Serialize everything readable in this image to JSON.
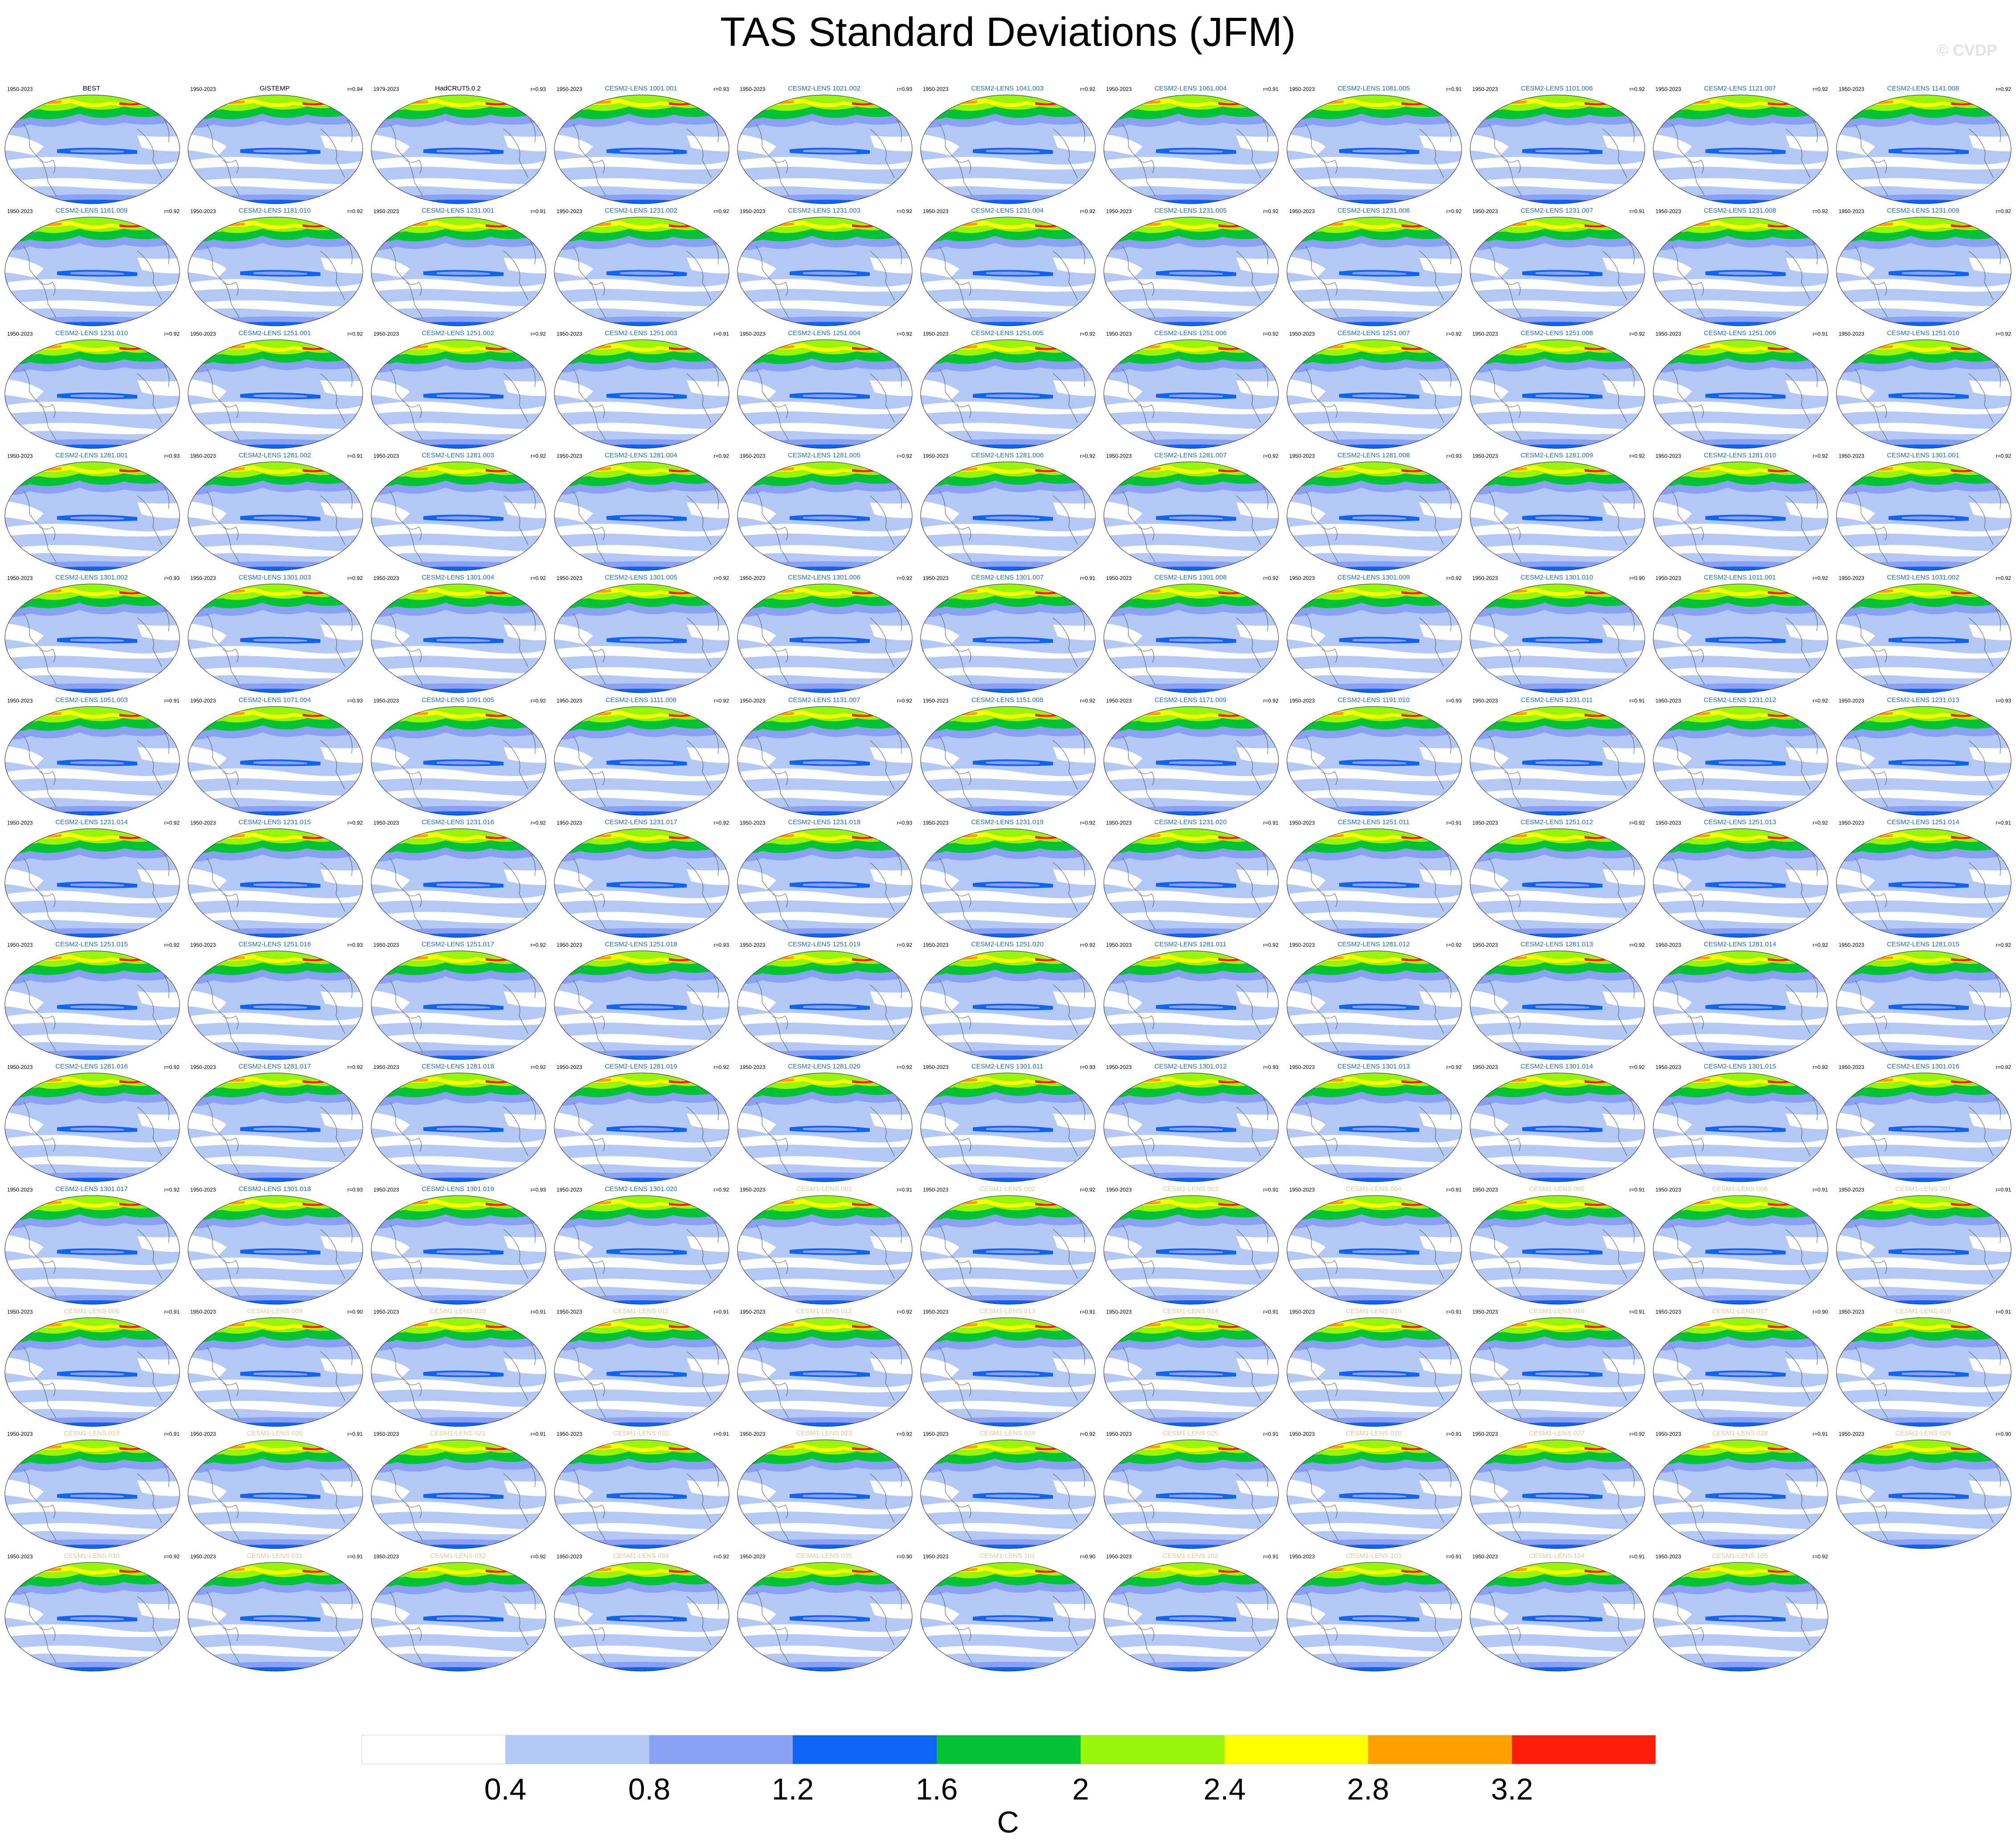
{
  "title": "TAS Standard Deviations (JFM)",
  "watermark": "© CVDP",
  "units": "C",
  "colorbar": {
    "levels": [
      "0.4",
      "0.8",
      "1.2",
      "1.6",
      "2",
      "2.4",
      "2.8",
      "3.2"
    ],
    "colors": [
      "#ffffff",
      "#b4c8f5",
      "#8aa0f5",
      "#0f64f5",
      "#05c337",
      "#96f50a",
      "#ffff00",
      "#ffa000",
      "#ff1e0a"
    ]
  },
  "name_colors": {
    "obs": "#000000",
    "cesm2": "#1e6eb4",
    "cesm1": "#e0c89a"
  },
  "panels": [
    {
      "period": "1950-2023",
      "name": "BEST",
      "corr": "",
      "group": "obs"
    },
    {
      "period": "1950-2023",
      "name": "GISTEMP",
      "corr": "r=0.94",
      "group": "obs"
    },
    {
      "period": "1979-2023",
      "name": "HadCRUT5.0.2",
      "corr": "r=0.93",
      "group": "obs"
    },
    {
      "period": "1950-2023",
      "name": "CESM2-LENS 1001.001",
      "corr": "r=0.93",
      "group": "cesm2"
    },
    {
      "period": "1950-2023",
      "name": "CESM2-LENS 1021.002",
      "corr": "r=0.93",
      "group": "cesm2"
    },
    {
      "period": "1950-2023",
      "name": "CESM2-LENS 1041.003",
      "corr": "r=0.92",
      "group": "cesm2"
    },
    {
      "period": "1950-2023",
      "name": "CESM2-LENS 1061.004",
      "corr": "r=0.91",
      "group": "cesm2"
    },
    {
      "period": "1950-2023",
      "name": "CESM2-LENS 1081.005",
      "corr": "r=0.91",
      "group": "cesm2"
    },
    {
      "period": "1950-2023",
      "name": "CESM2-LENS 1101.006",
      "corr": "r=0.92",
      "group": "cesm2"
    },
    {
      "period": "1950-2023",
      "name": "CESM2-LENS 1121.007",
      "corr": "r=0.92",
      "group": "cesm2"
    },
    {
      "period": "1950-2023",
      "name": "CESM2-LENS 1141.008",
      "corr": "r=0.92",
      "group": "cesm2"
    },
    {
      "period": "1950-2023",
      "name": "CESM2-LENS 1161.009",
      "corr": "r=0.92",
      "group": "cesm2"
    },
    {
      "period": "1950-2023",
      "name": "CESM2-LENS 1181.010",
      "corr": "r=0.92",
      "group": "cesm2"
    },
    {
      "period": "1950-2023",
      "name": "CESM2-LENS 1231.001",
      "corr": "r=0.91",
      "group": "cesm2"
    },
    {
      "period": "1950-2023",
      "name": "CESM2-LENS 1231.002",
      "corr": "r=0.92",
      "group": "cesm2"
    },
    {
      "period": "1950-2023",
      "name": "CESM2-LENS 1231.003",
      "corr": "r=0.92",
      "group": "cesm2"
    },
    {
      "period": "1950-2023",
      "name": "CESM2-LENS 1231.004",
      "corr": "r=0.92",
      "group": "cesm2"
    },
    {
      "period": "1950-2023",
      "name": "CESM2-LENS 1231.005",
      "corr": "r=0.92",
      "group": "cesm2"
    },
    {
      "period": "1950-2023",
      "name": "CESM2-LENS 1231.006",
      "corr": "r=0.92",
      "group": "cesm2"
    },
    {
      "period": "1950-2023",
      "name": "CESM2-LENS 1231.007",
      "corr": "r=0.91",
      "group": "cesm2"
    },
    {
      "period": "1950-2023",
      "name": "CESM2-LENS 1231.008",
      "corr": "r=0.92",
      "group": "cesm2"
    },
    {
      "period": "1950-2023",
      "name": "CESM2-LENS 1231.009",
      "corr": "r=0.92",
      "group": "cesm2"
    },
    {
      "period": "1950-2023",
      "name": "CESM2-LENS 1231.010",
      "corr": "r=0.92",
      "group": "cesm2"
    },
    {
      "period": "1950-2023",
      "name": "CESM2-LENS 1251.001",
      "corr": "r=0.92",
      "group": "cesm2"
    },
    {
      "period": "1950-2023",
      "name": "CESM2-LENS 1251.002",
      "corr": "r=0.92",
      "group": "cesm2"
    },
    {
      "period": "1950-2023",
      "name": "CESM2-LENS 1251.003",
      "corr": "r=0.91",
      "group": "cesm2"
    },
    {
      "period": "1950-2023",
      "name": "CESM2-LENS 1251.004",
      "corr": "r=0.92",
      "group": "cesm2"
    },
    {
      "period": "1950-2023",
      "name": "CESM2-LENS 1251.005",
      "corr": "r=0.92",
      "group": "cesm2"
    },
    {
      "period": "1950-2023",
      "name": "CESM2-LENS 1251.006",
      "corr": "r=0.92",
      "group": "cesm2"
    },
    {
      "period": "1950-2023",
      "name": "CESM2-LENS 1251.007",
      "corr": "r=0.92",
      "group": "cesm2"
    },
    {
      "period": "1950-2023",
      "name": "CESM2-LENS 1251.008",
      "corr": "r=0.92",
      "group": "cesm2"
    },
    {
      "period": "1950-2023",
      "name": "CESM2-LENS 1251.009",
      "corr": "r=0.91",
      "group": "cesm2"
    },
    {
      "period": "1950-2023",
      "name": "CESM2-LENS 1251.010",
      "corr": "r=0.92",
      "group": "cesm2"
    },
    {
      "period": "1950-2023",
      "name": "CESM2-LENS 1281.001",
      "corr": "r=0.93",
      "group": "cesm2"
    },
    {
      "period": "1950-2023",
      "name": "CESM2-LENS 1281.002",
      "corr": "r=0.91",
      "group": "cesm2"
    },
    {
      "period": "1950-2023",
      "name": "CESM2-LENS 1281.003",
      "corr": "r=0.92",
      "group": "cesm2"
    },
    {
      "period": "1950-2023",
      "name": "CESM2-LENS 1281.004",
      "corr": "r=0.92",
      "group": "cesm2"
    },
    {
      "period": "1950-2023",
      "name": "CESM2-LENS 1281.005",
      "corr": "r=0.92",
      "group": "cesm2"
    },
    {
      "period": "1950-2023",
      "name": "CESM2-LENS 1281.006",
      "corr": "r=0.92",
      "group": "cesm2"
    },
    {
      "period": "1950-2023",
      "name": "CESM2-LENS 1281.007",
      "corr": "r=0.92",
      "group": "cesm2"
    },
    {
      "period": "1950-2023",
      "name": "CESM2-LENS 1281.008",
      "corr": "r=0.93",
      "group": "cesm2"
    },
    {
      "period": "1950-2023",
      "name": "CESM2-LENS 1281.009",
      "corr": "r=0.92",
      "group": "cesm2"
    },
    {
      "period": "1950-2023",
      "name": "CESM2-LENS 1281.010",
      "corr": "r=0.92",
      "group": "cesm2"
    },
    {
      "period": "1950-2023",
      "name": "CESM2-LENS 1301.001",
      "corr": "r=0.92",
      "group": "cesm2"
    },
    {
      "period": "1950-2023",
      "name": "CESM2-LENS 1301.002",
      "corr": "r=0.93",
      "group": "cesm2"
    },
    {
      "period": "1950-2023",
      "name": "CESM2-LENS 1301.003",
      "corr": "r=0.92",
      "group": "cesm2"
    },
    {
      "period": "1950-2023",
      "name": "CESM2-LENS 1301.004",
      "corr": "r=0.92",
      "group": "cesm2"
    },
    {
      "period": "1950-2023",
      "name": "CESM2-LENS 1301.005",
      "corr": "r=0.92",
      "group": "cesm2"
    },
    {
      "period": "1950-2023",
      "name": "CESM2-LENS 1301.006",
      "corr": "r=0.92",
      "group": "cesm2"
    },
    {
      "period": "1950-2023",
      "name": "CESM2-LENS 1301.007",
      "corr": "r=0.91",
      "group": "cesm2"
    },
    {
      "period": "1950-2023",
      "name": "CESM2-LENS 1301.008",
      "corr": "r=0.92",
      "group": "cesm2"
    },
    {
      "period": "1950-2023",
      "name": "CESM2-LENS 1301.009",
      "corr": "r=0.92",
      "group": "cesm2"
    },
    {
      "period": "1950-2023",
      "name": "CESM2-LENS 1301.010",
      "corr": "r=0.90",
      "group": "cesm2"
    },
    {
      "period": "1950-2023",
      "name": "CESM2-LENS 1011.001",
      "corr": "r=0.92",
      "group": "cesm2"
    },
    {
      "period": "1950-2023",
      "name": "CESM2-LENS 1031.002",
      "corr": "r=0.92",
      "group": "cesm2"
    },
    {
      "period": "1950-2023",
      "name": "CESM2-LENS 1051.003",
      "corr": "r=0.91",
      "group": "cesm2"
    },
    {
      "period": "1950-2023",
      "name": "CESM2-LENS 1071.004",
      "corr": "r=0.93",
      "group": "cesm2"
    },
    {
      "period": "1950-2023",
      "name": "CESM2-LENS 1091.005",
      "corr": "r=0.92",
      "group": "cesm2"
    },
    {
      "period": "1950-2023",
      "name": "CESM2-LENS 1111.006",
      "corr": "r=0.92",
      "group": "cesm2"
    },
    {
      "period": "1950-2023",
      "name": "CESM2-LENS 1131.007",
      "corr": "r=0.92",
      "group": "cesm2"
    },
    {
      "period": "1950-2023",
      "name": "CESM2-LENS 1151.008",
      "corr": "r=0.92",
      "group": "cesm2"
    },
    {
      "period": "1950-2023",
      "name": "CESM2-LENS 1171.009",
      "corr": "r=0.92",
      "group": "cesm2"
    },
    {
      "period": "1950-2023",
      "name": "CESM2-LENS 1191.010",
      "corr": "r=0.93",
      "group": "cesm2"
    },
    {
      "period": "1950-2023",
      "name": "CESM2-LENS 1231.011",
      "corr": "r=0.91",
      "group": "cesm2"
    },
    {
      "period": "1950-2023",
      "name": "CESM2-LENS 1231.012",
      "corr": "r=0.92",
      "group": "cesm2"
    },
    {
      "period": "1950-2023",
      "name": "CESM2-LENS 1231.013",
      "corr": "r=0.93",
      "group": "cesm2"
    },
    {
      "period": "1950-2023",
      "name": "CESM2-LENS 1231.014",
      "corr": "r=0.92",
      "group": "cesm2"
    },
    {
      "period": "1950-2023",
      "name": "CESM2-LENS 1231.015",
      "corr": "r=0.92",
      "group": "cesm2"
    },
    {
      "period": "1950-2023",
      "name": "CESM2-LENS 1231.016",
      "corr": "r=0.92",
      "group": "cesm2"
    },
    {
      "period": "1950-2023",
      "name": "CESM2-LENS 1231.017",
      "corr": "r=0.92",
      "group": "cesm2"
    },
    {
      "period": "1950-2023",
      "name": "CESM2-LENS 1231.018",
      "corr": "r=0.93",
      "group": "cesm2"
    },
    {
      "period": "1950-2023",
      "name": "CESM2-LENS 1231.019",
      "corr": "r=0.92",
      "group": "cesm2"
    },
    {
      "period": "1950-2023",
      "name": "CESM2-LENS 1231.020",
      "corr": "r=0.91",
      "group": "cesm2"
    },
    {
      "period": "1950-2023",
      "name": "CESM2-LENS 1251.011",
      "corr": "r=0.91",
      "group": "cesm2"
    },
    {
      "period": "1950-2023",
      "name": "CESM2-LENS 1251.012",
      "corr": "r=0.92",
      "group": "cesm2"
    },
    {
      "period": "1950-2023",
      "name": "CESM2-LENS 1251.013",
      "corr": "r=0.92",
      "group": "cesm2"
    },
    {
      "period": "1950-2023",
      "name": "CESM2-LENS 1251.014",
      "corr": "r=0.91",
      "group": "cesm2"
    },
    {
      "period": "1950-2023",
      "name": "CESM2-LENS 1251.015",
      "corr": "r=0.92",
      "group": "cesm2"
    },
    {
      "period": "1950-2023",
      "name": "CESM2-LENS 1251.016",
      "corr": "r=0.93",
      "group": "cesm2"
    },
    {
      "period": "1950-2023",
      "name": "CESM2-LENS 1251.017",
      "corr": "r=0.92",
      "group": "cesm2"
    },
    {
      "period": "1950-2023",
      "name": "CESM2-LENS 1251.018",
      "corr": "r=0.93",
      "group": "cesm2"
    },
    {
      "period": "1950-2023",
      "name": "CESM2-LENS 1251.019",
      "corr": "r=0.92",
      "group": "cesm2"
    },
    {
      "period": "1950-2023",
      "name": "CESM2-LENS 1251.020",
      "corr": "r=0.92",
      "group": "cesm2"
    },
    {
      "period": "1950-2023",
      "name": "CESM2-LENS 1281.011",
      "corr": "r=0.92",
      "group": "cesm2"
    },
    {
      "period": "1950-2023",
      "name": "CESM2-LENS 1281.012",
      "corr": "r=0.92",
      "group": "cesm2"
    },
    {
      "period": "1950-2023",
      "name": "CESM2-LENS 1281.013",
      "corr": "r=0.92",
      "group": "cesm2"
    },
    {
      "period": "1950-2023",
      "name": "CESM2-LENS 1281.014",
      "corr": "r=0.92",
      "group": "cesm2"
    },
    {
      "period": "1950-2023",
      "name": "CESM2-LENS 1281.015",
      "corr": "r=0.92",
      "group": "cesm2"
    },
    {
      "period": "1950-2023",
      "name": "CESM2-LENS 1281.016",
      "corr": "r=0.92",
      "group": "cesm2"
    },
    {
      "period": "1950-2023",
      "name": "CESM2-LENS 1281.017",
      "corr": "r=0.92",
      "group": "cesm2"
    },
    {
      "period": "1950-2023",
      "name": "CESM2-LENS 1281.018",
      "corr": "r=0.92",
      "group": "cesm2"
    },
    {
      "period": "1950-2023",
      "name": "CESM2-LENS 1281.019",
      "corr": "r=0.92",
      "group": "cesm2"
    },
    {
      "period": "1950-2023",
      "name": "CESM2-LENS 1281.020",
      "corr": "r=0.92",
      "group": "cesm2"
    },
    {
      "period": "1950-2023",
      "name": "CESM2-LENS 1301.011",
      "corr": "r=0.93",
      "group": "cesm2"
    },
    {
      "period": "1950-2023",
      "name": "CESM2-LENS 1301.012",
      "corr": "r=0.93",
      "group": "cesm2"
    },
    {
      "period": "1950-2023",
      "name": "CESM2-LENS 1301.013",
      "corr": "r=0.92",
      "group": "cesm2"
    },
    {
      "period": "1950-2023",
      "name": "CESM2-LENS 1301.014",
      "corr": "r=0.92",
      "group": "cesm2"
    },
    {
      "period": "1950-2023",
      "name": "CESM2-LENS 1301.015",
      "corr": "r=0.92",
      "group": "cesm2"
    },
    {
      "period": "1950-2023",
      "name": "CESM2-LENS 1301.016",
      "corr": "r=0.92",
      "group": "cesm2"
    },
    {
      "period": "1950-2023",
      "name": "CESM2-LENS 1301.017",
      "corr": "r=0.92",
      "group": "cesm2"
    },
    {
      "period": "1950-2023",
      "name": "CESM2-LENS 1301.018",
      "corr": "r=0.93",
      "group": "cesm2"
    },
    {
      "period": "1950-2023",
      "name": "CESM2-LENS 1301.019",
      "corr": "r=0.93",
      "group": "cesm2"
    },
    {
      "period": "1950-2023",
      "name": "CESM2-LENS 1301.020",
      "corr": "r=0.92",
      "group": "cesm2"
    },
    {
      "period": "1950-2023",
      "name": "CESM1-LENS 001",
      "corr": "r=0.91",
      "group": "cesm1"
    },
    {
      "period": "1950-2023",
      "name": "CESM1-LENS 002",
      "corr": "r=0.92",
      "group": "cesm1"
    },
    {
      "period": "1950-2023",
      "name": "CESM1-LENS 003",
      "corr": "r=0.91",
      "group": "cesm1"
    },
    {
      "period": "1950-2023",
      "name": "CESM1-LENS 004",
      "corr": "r=0.91",
      "group": "cesm1"
    },
    {
      "period": "1950-2023",
      "name": "CESM1-LENS 005",
      "corr": "r=0.91",
      "group": "cesm1"
    },
    {
      "period": "1950-2023",
      "name": "CESM1-LENS 006",
      "corr": "r=0.91",
      "group": "cesm1"
    },
    {
      "period": "1950-2023",
      "name": "CESM1-LENS 007",
      "corr": "r=0.91",
      "group": "cesm1"
    },
    {
      "period": "1950-2023",
      "name": "CESM1-LENS 008",
      "corr": "r=0.91",
      "group": "cesm1"
    },
    {
      "period": "1950-2023",
      "name": "CESM1-LENS 009",
      "corr": "r=0.90",
      "group": "cesm1"
    },
    {
      "period": "1950-2023",
      "name": "CESM1-LENS 010",
      "corr": "r=0.91",
      "group": "cesm1"
    },
    {
      "period": "1950-2023",
      "name": "CESM1-LENS 011",
      "corr": "r=0.91",
      "group": "cesm1"
    },
    {
      "period": "1950-2023",
      "name": "CESM1-LENS 012",
      "corr": "r=0.92",
      "group": "cesm1"
    },
    {
      "period": "1950-2023",
      "name": "CESM1-LENS 013",
      "corr": "r=0.91",
      "group": "cesm1"
    },
    {
      "period": "1950-2023",
      "name": "CESM1-LENS 014",
      "corr": "r=0.91",
      "group": "cesm1"
    },
    {
      "period": "1950-2023",
      "name": "CESM1-LENS 015",
      "corr": "r=0.91",
      "group": "cesm1"
    },
    {
      "period": "1950-2023",
      "name": "CESM1-LENS 016",
      "corr": "r=0.91",
      "group": "cesm1"
    },
    {
      "period": "1950-2023",
      "name": "CESM1-LENS 017",
      "corr": "r=0.90",
      "group": "cesm1"
    },
    {
      "period": "1950-2023",
      "name": "CESM1-LENS 018",
      "corr": "r=0.91",
      "group": "cesm1"
    },
    {
      "period": "1950-2023",
      "name": "CESM1-LENS 019",
      "corr": "r=0.91",
      "group": "cesm1"
    },
    {
      "period": "1950-2023",
      "name": "CESM1-LENS 020",
      "corr": "r=0.91",
      "group": "cesm1"
    },
    {
      "period": "1950-2023",
      "name": "CESM1-LENS 021",
      "corr": "r=0.91",
      "group": "cesm1"
    },
    {
      "period": "1950-2023",
      "name": "CESM1-LENS 022",
      "corr": "r=0.91",
      "group": "cesm1"
    },
    {
      "period": "1950-2023",
      "name": "CESM1-LENS 023",
      "corr": "r=0.92",
      "group": "cesm1"
    },
    {
      "period": "1950-2023",
      "name": "CESM1-LENS 024",
      "corr": "r=0.92",
      "group": "cesm1"
    },
    {
      "period": "1950-2023",
      "name": "CESM1-LENS 025",
      "corr": "r=0.91",
      "group": "cesm1"
    },
    {
      "period": "1950-2023",
      "name": "CESM1-LENS 026",
      "corr": "r=0.91",
      "group": "cesm1"
    },
    {
      "period": "1950-2023",
      "name": "CESM1-LENS 027",
      "corr": "r=0.92",
      "group": "cesm1"
    },
    {
      "period": "1950-2023",
      "name": "CESM1-LENS 028",
      "corr": "r=0.91",
      "group": "cesm1"
    },
    {
      "period": "1950-2023",
      "name": "CESM1-LENS 029",
      "corr": "r=0.90",
      "group": "cesm1"
    },
    {
      "period": "1950-2023",
      "name": "CESM1-LENS 030",
      "corr": "r=0.92",
      "group": "cesm1"
    },
    {
      "period": "1950-2023",
      "name": "CESM1-LENS 031",
      "corr": "r=0.91",
      "group": "cesm1"
    },
    {
      "period": "1950-2023",
      "name": "CESM1-LENS 032",
      "corr": "r=0.92",
      "group": "cesm1"
    },
    {
      "period": "1950-2023",
      "name": "CESM1-LENS 034",
      "corr": "r=0.92",
      "group": "cesm1"
    },
    {
      "period": "1950-2023",
      "name": "CESM1-LENS 035",
      "corr": "r=0.90",
      "group": "cesm1"
    },
    {
      "period": "1950-2023",
      "name": "CESM1-LENS 101",
      "corr": "r=0.90",
      "group": "cesm1"
    },
    {
      "period": "1950-2023",
      "name": "CESM1-LENS 102",
      "corr": "r=0.91",
      "group": "cesm1"
    },
    {
      "period": "1950-2023",
      "name": "CESM1-LENS 103",
      "corr": "r=0.91",
      "group": "cesm1"
    },
    {
      "period": "1950-2023",
      "name": "CESM1-LENS 104",
      "corr": "r=0.91",
      "group": "cesm1"
    },
    {
      "period": "1950-2023",
      "name": "CESM1-LENS 105",
      "corr": "r=0.92",
      "group": "cesm1"
    }
  ]
}
